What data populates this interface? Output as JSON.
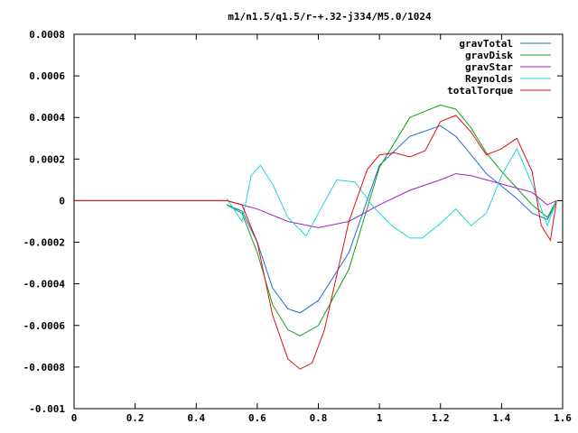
{
  "chart_data": {
    "type": "line",
    "title": "m1/n1.5/q1.5/r-+.32-j334/M5.0/1024",
    "xlim": [
      0,
      1.6
    ],
    "ylim": [
      -0.001,
      0.0008
    ],
    "xticks": [
      0,
      0.2,
      0.4,
      0.6,
      0.8,
      1,
      1.2,
      1.4,
      1.6
    ],
    "xtick_labels": [
      "0",
      "0.2",
      "0.4",
      "0.6",
      "0.8",
      "1",
      "1.2",
      "1.4",
      "1.6"
    ],
    "yticks": [
      -0.001,
      -0.0008,
      -0.0006,
      -0.0004,
      -0.0002,
      0,
      0.0002,
      0.0004,
      0.0006,
      0.0008
    ],
    "ytick_labels": [
      "-0.001",
      "-0.0008",
      "-0.0006",
      "-0.0004",
      "-0.0002",
      "0",
      "0.0002",
      "0.0004",
      "0.0006",
      "0.0008"
    ],
    "grid": false,
    "legend_position": "top-right",
    "series": [
      {
        "name": "gravTotal",
        "color": "#1f6fd6",
        "x": [
          0.5,
          0.55,
          0.6,
          0.65,
          0.7,
          0.74,
          0.8,
          0.9,
          1.0,
          1.1,
          1.2,
          1.25,
          1.3,
          1.35,
          1.4,
          1.45,
          1.5,
          1.55,
          1.58
        ],
        "y": [
          -2e-05,
          -5e-05,
          -0.0002,
          -0.00042,
          -0.00052,
          -0.00054,
          -0.00048,
          -0.00025,
          0.00017,
          0.00031,
          0.00036,
          0.00031,
          0.00022,
          0.00013,
          7e-05,
          1e-05,
          -6e-05,
          -9e-05,
          -1e-05
        ]
      },
      {
        "name": "gravDisk",
        "color": "#14a114",
        "x": [
          0.5,
          0.55,
          0.6,
          0.65,
          0.7,
          0.74,
          0.8,
          0.9,
          1.0,
          1.1,
          1.2,
          1.25,
          1.3,
          1.35,
          1.4,
          1.45,
          1.5,
          1.55,
          1.58
        ],
        "y": [
          -2e-05,
          -6e-05,
          -0.00025,
          -0.0005,
          -0.00062,
          -0.00065,
          -0.0006,
          -0.00033,
          0.00016,
          0.0004,
          0.00046,
          0.00044,
          0.00035,
          0.00023,
          0.00014,
          6e-05,
          -2e-05,
          -8e-05,
          0.0
        ]
      },
      {
        "name": "gravStar",
        "color": "#a020c8",
        "x": [
          0,
          0.5,
          0.6,
          0.7,
          0.8,
          0.9,
          1.0,
          1.1,
          1.2,
          1.25,
          1.3,
          1.4,
          1.5,
          1.55,
          1.58
        ],
        "y": [
          0,
          0,
          -4e-05,
          -0.0001,
          -0.00013,
          -0.0001,
          -2e-05,
          5e-05,
          0.0001,
          0.00013,
          0.00012,
          8e-05,
          4e-05,
          -2e-05,
          0.0
        ]
      },
      {
        "name": "Reynolds",
        "color": "#20d6d6",
        "x": [
          0.5,
          0.55,
          0.58,
          0.61,
          0.65,
          0.7,
          0.76,
          0.8,
          0.86,
          0.92,
          0.98,
          1.04,
          1.1,
          1.14,
          1.2,
          1.25,
          1.3,
          1.35,
          1.4,
          1.45,
          1.5,
          1.55,
          1.58
        ],
        "y": [
          1e-05,
          -0.0001,
          0.00012,
          0.00017,
          8e-05,
          -8e-05,
          -0.00017,
          -6e-05,
          0.0001,
          9e-05,
          -3e-05,
          -0.00012,
          -0.00018,
          -0.00018,
          -0.00011,
          -4e-05,
          -0.00012,
          -6e-05,
          0.00012,
          0.00025,
          8e-05,
          -0.00012,
          0.0
        ]
      },
      {
        "name": "totalTorque",
        "color": "#e01010",
        "x": [
          0,
          0.5,
          0.55,
          0.6,
          0.65,
          0.7,
          0.74,
          0.78,
          0.82,
          0.9,
          0.96,
          1.0,
          1.05,
          1.1,
          1.15,
          1.2,
          1.25,
          1.3,
          1.35,
          1.4,
          1.45,
          1.5,
          1.53,
          1.56,
          1.58
        ],
        "y": [
          0,
          0,
          -2e-05,
          -0.0002,
          -0.00055,
          -0.00076,
          -0.00081,
          -0.00078,
          -0.00062,
          -0.0001,
          0.00015,
          0.00022,
          0.00023,
          0.00021,
          0.00024,
          0.00038,
          0.00041,
          0.00033,
          0.00022,
          0.00025,
          0.0003,
          0.00014,
          -0.00012,
          -0.00019,
          0.0
        ]
      }
    ]
  }
}
